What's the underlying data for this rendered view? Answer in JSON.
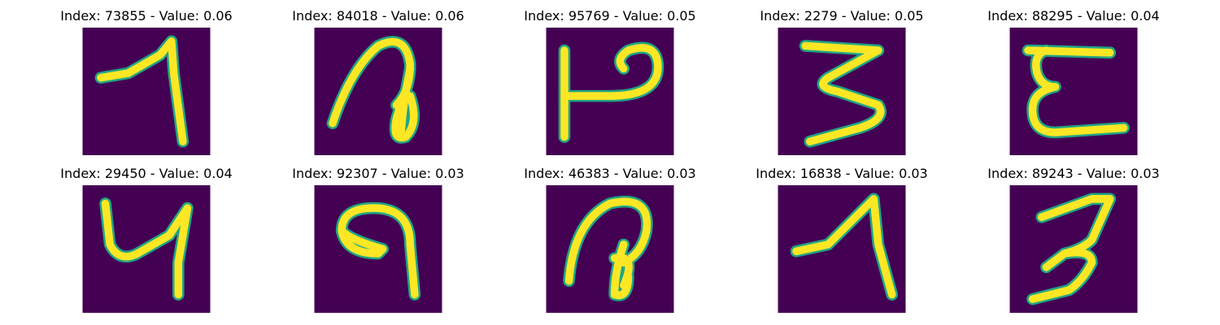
{
  "figure": {
    "background_color": "#440154",
    "stroke_color": "#fde725",
    "edge_color": "#21a585",
    "panels": [
      {
        "index": "73855",
        "value": "0.06",
        "title": "Index: 73855 - Value: 0.06"
      },
      {
        "index": "84018",
        "value": "0.06",
        "title": "Index: 84018 - Value: 0.06"
      },
      {
        "index": "95769",
        "value": "0.05",
        "title": "Index: 95769 - Value: 0.05"
      },
      {
        "index": "2279",
        "value": "0.05",
        "title": "Index: 2279 - Value: 0.05"
      },
      {
        "index": "88295",
        "value": "0.04",
        "title": "Index: 88295 - Value: 0.04"
      },
      {
        "index": "29450",
        "value": "0.04",
        "title": "Index: 29450 - Value: 0.04"
      },
      {
        "index": "92307",
        "value": "0.03",
        "title": "Index: 92307 - Value: 0.03"
      },
      {
        "index": "46383",
        "value": "0.03",
        "title": "Index: 46383 - Value: 0.03"
      },
      {
        "index": "16838",
        "value": "0.03",
        "title": "Index: 16838 - Value: 0.03"
      },
      {
        "index": "89243",
        "value": "0.03",
        "title": "Index: 89243 - Value: 0.03"
      }
    ]
  }
}
